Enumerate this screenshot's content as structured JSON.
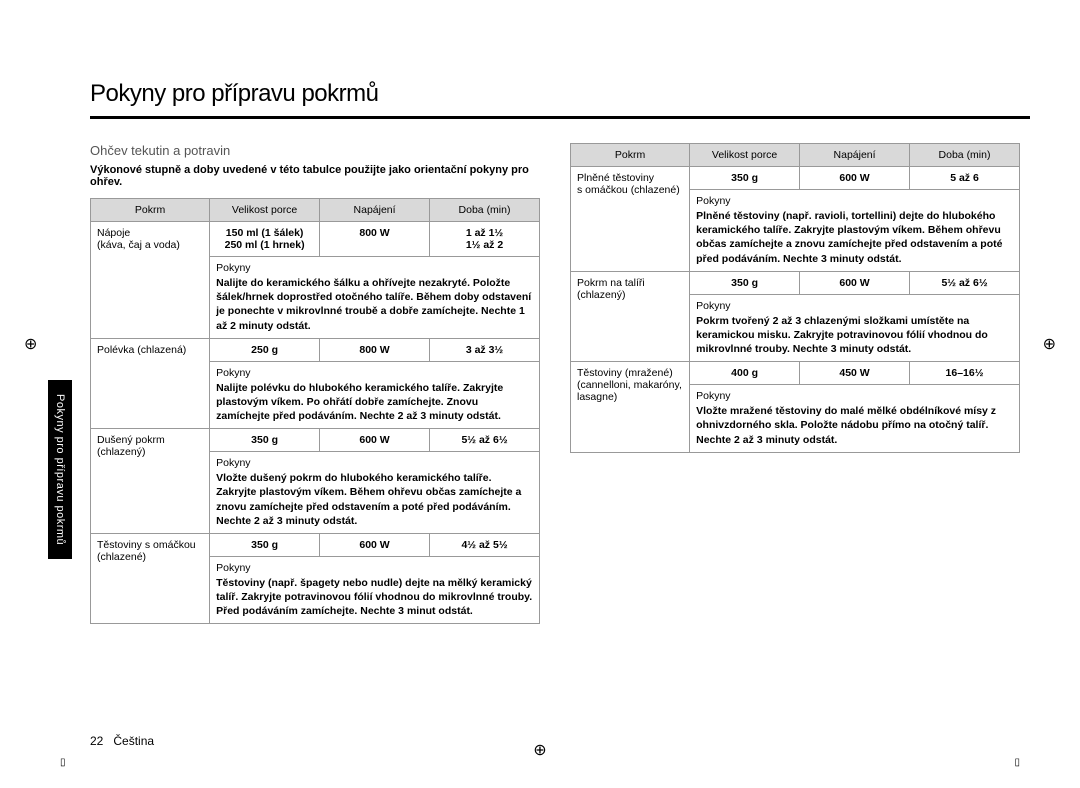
{
  "title": "Pokyny pro přípravu pokrmů",
  "subtitle": "Ohčev tekutin a potravin",
  "intro": "Výkonové stupně a doby uvedené v této tabulce použijte jako orientační pokyny pro ohřev.",
  "headers": {
    "food": "Pokrm",
    "portion": "Velikost porce",
    "power": "Napájení",
    "time": "Doba (min)"
  },
  "instructionLabel": "Pokyny",
  "leftRows": [
    {
      "food": "Nápoje\n(káva, čaj a voda)",
      "portion": "150 ml (1 šálek)\n250 ml (1 hrnek)",
      "power": "800 W",
      "time": "1 až 1½\n1½ až 2",
      "instruction": "Nalijte do keramického šálku a ohřívejte nezakryté. Položte šálek/hrnek doprostřed otočného talíře. Během doby odstavení je ponechte v mikrovlnné troubě a dobře zamíchejte. Nechte 1 až 2 minuty odstát."
    },
    {
      "food": "Polévka (chlazená)",
      "portion": "250 g",
      "power": "800 W",
      "time": "3 až 3½",
      "instruction": "Nalijte polévku do hlubokého keramického talíře. Zakryjte plastovým víkem. Po ohřátí dobře zamíchejte. Znovu zamíchejte před podáváním. Nechte 2 až 3 minuty odstát."
    },
    {
      "food": "Dušený pokrm\n(chlazený)",
      "portion": "350 g",
      "power": "600 W",
      "time": "5½ až 6½",
      "instruction": "Vložte dušený pokrm do hlubokého keramického talíře. Zakryjte plastovým víkem. Během ohřevu občas zamíchejte a znovu zamíchejte před odstavením a poté před podáváním. Nechte 2 až 3 minuty odstát."
    },
    {
      "food": "Těstoviny s omáčkou\n(chlazené)",
      "portion": "350 g",
      "power": "600 W",
      "time": "4½ až 5½",
      "instruction": "Těstoviny (např. špagety nebo nudle) dejte na mělký keramický talíř. Zakryjte potravinovou fólií vhodnou do mikrovlnné trouby. Před podáváním zamíchejte. Nechte 3 minut odstát."
    }
  ],
  "rightRows": [
    {
      "food": "Plněné těstoviny\ns omáčkou (chlazené)",
      "portion": "350 g",
      "power": "600 W",
      "time": "5 až 6",
      "instruction": "Plněné těstoviny (např. ravioli, tortellini) dejte do hlubokého keramického talíře. Zakryjte plastovým víkem. Během ohřevu občas zamíchejte a znovu zamíchejte před odstavením a poté před podáváním. Nechte 3 minuty odstát."
    },
    {
      "food": "Pokrm na talíři\n(chlazený)",
      "portion": "350 g",
      "power": "600 W",
      "time": "5½ až 6½",
      "instruction": "Pokrm tvořený 2 až 3 chlazenými složkami umístěte na keramickou misku. Zakryjte potravinovou fólií vhodnou do mikrovlnné trouby. Nechte 3 minuty odstát."
    },
    {
      "food": "Těstoviny (mražené)\n(cannelloni, makaróny, lasagne)",
      "portion": "400 g",
      "power": "450 W",
      "time": "16–16½",
      "instruction": "Vložte mražené těstoviny do malé mělké obdélníkové mísy z ohnivzdorného skla. Položte nádobu přímo na otočný talíř. Nechte 2 až 3 minuty odstát."
    }
  ],
  "sideTab": "Pokyny pro přípravu pokrmů",
  "pageNum": "22",
  "lang": "Čeština",
  "colors": {
    "headerBg": "#d9d9d9",
    "border": "#999999",
    "text": "#000000",
    "bg": "#ffffff"
  }
}
